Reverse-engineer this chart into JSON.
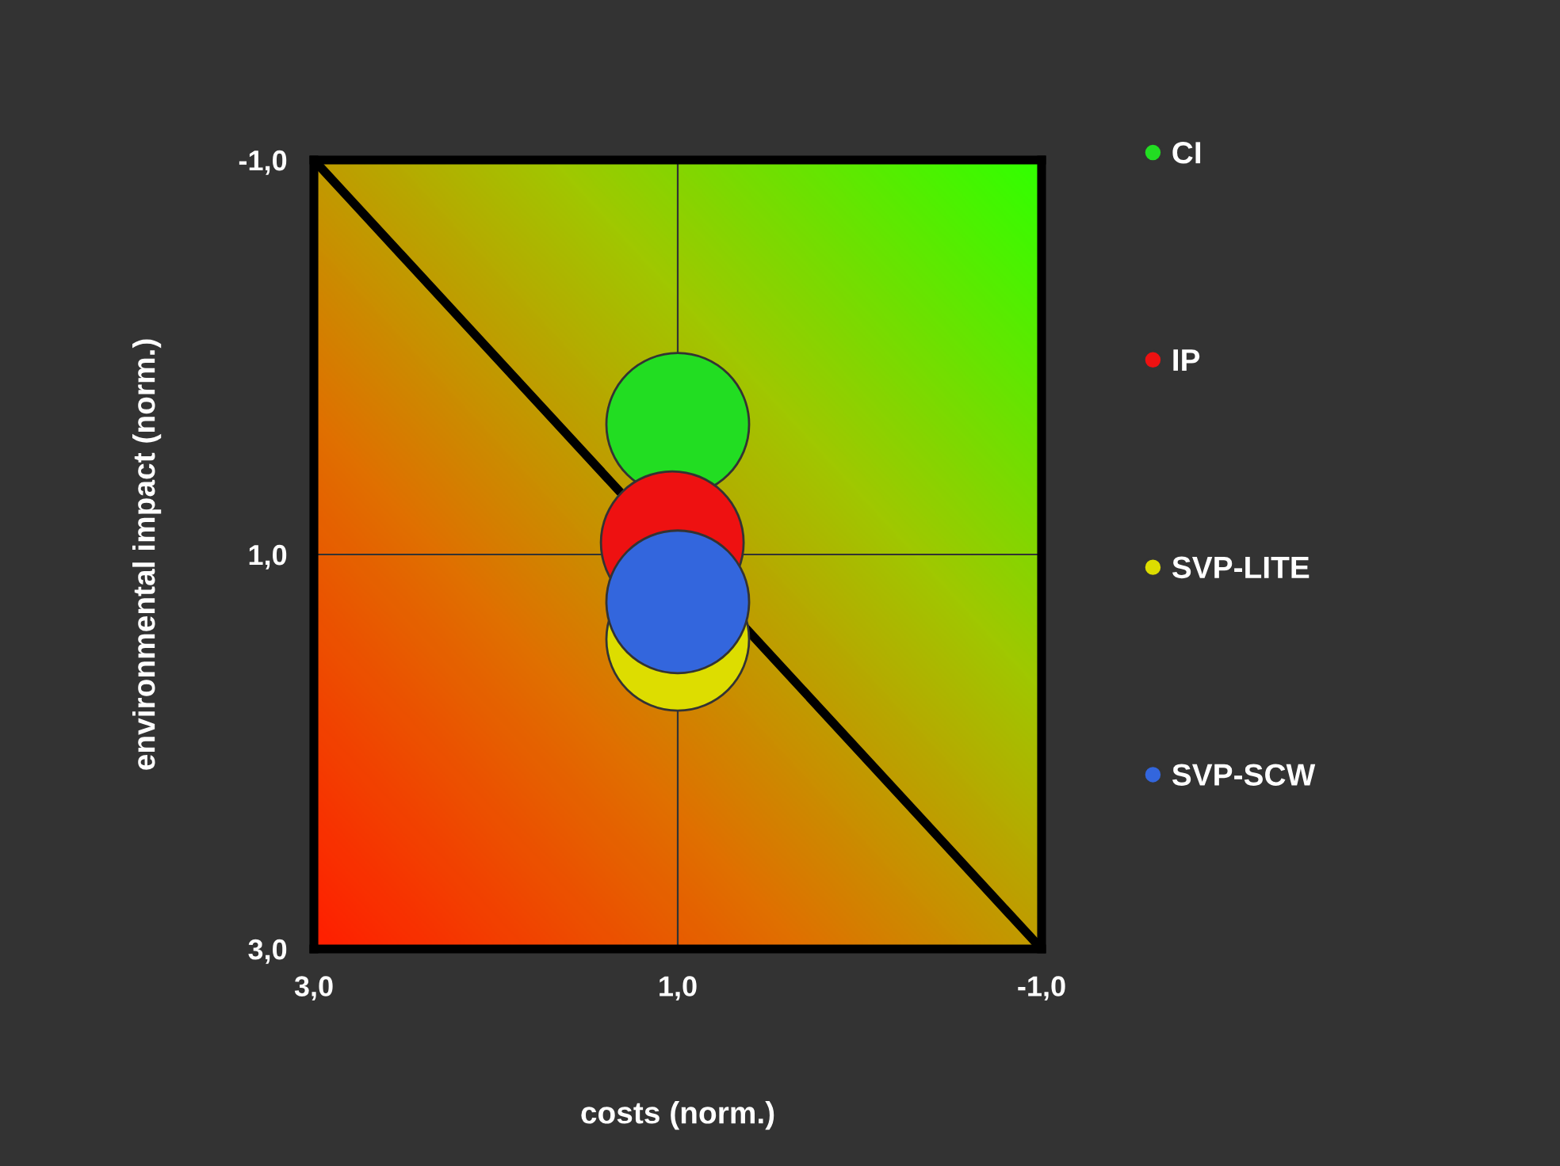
{
  "chart_data": {
    "type": "bubble",
    "xlabel": "costs (norm.)",
    "ylabel": "environmental impact (norm.)",
    "xlim": [
      3,
      -1
    ],
    "ylim": [
      3,
      -1
    ],
    "xticks": [
      {
        "value": 3,
        "label": "3,0"
      },
      {
        "value": 1,
        "label": "1,0"
      },
      {
        "value": -1,
        "label": "-1,0"
      }
    ],
    "yticks": [
      {
        "value": 3,
        "label": "3,0"
      },
      {
        "value": 1,
        "label": "1,0"
      },
      {
        "value": -1,
        "label": "-1,0"
      }
    ],
    "grid": true,
    "legend": "right",
    "series": [
      {
        "name": "CI",
        "color": "#22dd22",
        "x": [
          1.0
        ],
        "values": [
          0.34
        ],
        "sizes": [
          1
        ]
      },
      {
        "name": "IP",
        "color": "#ee1111",
        "x": [
          1.03
        ],
        "values": [
          0.94
        ],
        "sizes": [
          1
        ]
      },
      {
        "name": "SVP-LITE",
        "color": "#dddd00",
        "x": [
          1.0
        ],
        "values": [
          1.43
        ],
        "sizes": [
          1
        ]
      },
      {
        "name": "SVP-SCW",
        "color": "#3366dd",
        "x": [
          1.0
        ],
        "values": [
          1.24
        ],
        "sizes": [
          1
        ]
      },
      {
        "type": "line",
        "color": "#000000",
        "x": [
          3,
          -1
        ],
        "values": [
          -1,
          3
        ]
      }
    ]
  }
}
